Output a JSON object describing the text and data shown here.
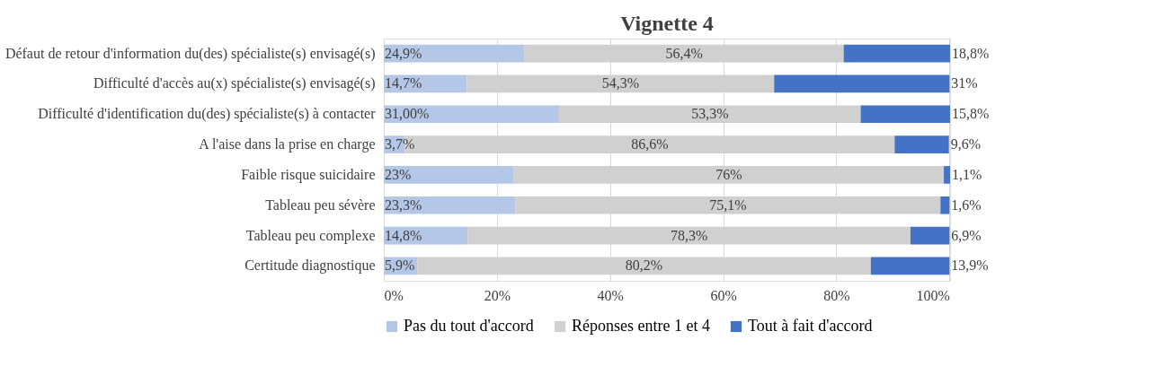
{
  "chart_data": {
    "type": "bar",
    "orientation": "horizontal",
    "stacked": true,
    "title": "Vignette 4",
    "categories": [
      "Défaut de retour d'information du(des) spécialiste(s) envisagé(s)",
      "Difficulté d'accès au(x) spécialiste(s) envisagé(s)",
      "Difficulté d'identification du(des) spécialiste(s) à contacter",
      "A l'aise dans la prise en charge",
      "Faible risque suicidaire",
      "Tableau peu sévère",
      "Tableau peu complexe",
      "Certitude diagnostique"
    ],
    "series": [
      {
        "name": "Pas du tout d'accord",
        "color": "#b4c7e7",
        "values": [
          24.9,
          14.7,
          31.0,
          3.7,
          23,
          23.3,
          14.8,
          5.9
        ],
        "value_labels": [
          "24,9%",
          "14,7%",
          "31,00%",
          "3,7%",
          "23%",
          "23,3%",
          "14,8%",
          "5,9%"
        ]
      },
      {
        "name": "Réponses entre 1 et 4",
        "color": "#d0d0d0",
        "values": [
          56.4,
          54.3,
          53.3,
          86.6,
          76,
          75.1,
          78.3,
          80.2
        ],
        "value_labels": [
          "56,4%",
          "54,3%",
          "53,3%",
          "86,6%",
          "76%",
          "75,1%",
          "78,3%",
          "80,2%"
        ]
      },
      {
        "name": "Tout à fait d'accord",
        "color": "#4472c4",
        "values": [
          18.8,
          31,
          15.8,
          9.6,
          1.1,
          1.6,
          6.9,
          13.9
        ],
        "value_labels": [
          "18,8%",
          "31%",
          "15,8%",
          "9,6%",
          "1,1%",
          "1,6%",
          "6,9%",
          "13,9%"
        ]
      }
    ],
    "xlim": [
      0,
      100.1
    ],
    "xticks": [
      {
        "value": 0,
        "label": "0%"
      },
      {
        "value": 20,
        "label": "20%"
      },
      {
        "value": 40,
        "label": "40%"
      },
      {
        "value": 60,
        "label": "60%"
      },
      {
        "value": 80,
        "label": "80%"
      },
      {
        "value": 100,
        "label": "100%"
      }
    ],
    "grid": "x",
    "legend": "bottom"
  }
}
